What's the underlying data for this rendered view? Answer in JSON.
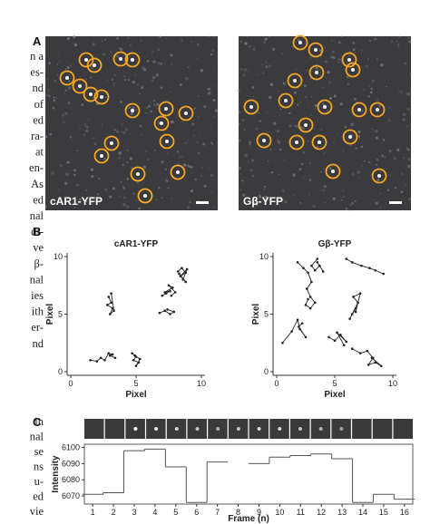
{
  "left_column": {
    "block1": [
      "n a",
      "es-",
      "nd",
      "of",
      "ed",
      "ra-",
      "at",
      "en-",
      "As",
      "ed",
      "nal",
      "di-",
      "ve",
      "β-",
      "nal",
      "ies",
      "ith",
      "er-",
      "nd"
    ],
    "block2": [
      "in",
      "nal",
      "se",
      "ns",
      "u-",
      "ed",
      "vie"
    ]
  },
  "panel_a": {
    "label": "A",
    "images": [
      {
        "caption": "cAR1-YFP"
      },
      {
        "caption": "Gβ-YFP"
      }
    ]
  },
  "panel_b": {
    "label": "B",
    "chart_data": [
      {
        "type": "line",
        "title": "cAR1-YFP",
        "xlabel": "Pixel",
        "ylabel": "Pixel",
        "xlim": [
          0,
          10
        ],
        "ylim": [
          0,
          10
        ],
        "xticks": [
          0,
          5,
          10
        ],
        "yticks": [
          0,
          5,
          10
        ],
        "color": "#222",
        "series": [
          {
            "x": [
              1.5,
              2.0,
              2.3,
              2.6,
              2.9,
              3.2,
              3.0,
              3.4
            ],
            "y": [
              1.0,
              0.9,
              1.2,
              1.0,
              1.6,
              1.5,
              1.4,
              1.2
            ]
          },
          {
            "x": [
              2.9,
              3.1,
              2.8,
              3.2,
              3.0,
              3.3,
              3.1
            ],
            "y": [
              6.5,
              6.0,
              5.8,
              5.5,
              5.0,
              5.3,
              6.8
            ]
          },
          {
            "x": [
              4.7,
              5.0,
              4.8,
              5.2,
              5.0,
              5.3,
              4.9
            ],
            "y": [
              1.6,
              1.3,
              1.0,
              0.8,
              0.5,
              1.1,
              1.4
            ]
          },
          {
            "x": [
              7.0,
              7.3,
              7.6,
              7.2,
              7.8,
              7.5,
              8.0,
              7.7
            ],
            "y": [
              6.6,
              6.8,
              7.0,
              6.9,
              7.3,
              7.5,
              6.9,
              6.6
            ]
          },
          {
            "x": [
              6.8,
              7.2,
              7.6,
              7.9,
              7.4
            ],
            "y": [
              5.1,
              5.3,
              5.0,
              5.2,
              5.4
            ]
          },
          {
            "x": [
              8.2,
              8.5,
              8.8,
              8.4,
              8.9,
              8.6,
              8.3,
              8.8
            ],
            "y": [
              8.7,
              9.0,
              8.6,
              8.3,
              8.9,
              8.0,
              8.5,
              7.8
            ]
          }
        ]
      },
      {
        "type": "line",
        "title": "Gβ-YFP",
        "xlabel": "Pixel",
        "ylabel": "Pixel",
        "xlim": [
          0,
          10
        ],
        "ylim": [
          0,
          10
        ],
        "xticks": [
          0,
          5,
          10
        ],
        "yticks": [
          0,
          5,
          10
        ],
        "color": "#222",
        "series": [
          {
            "x": [
              0.5,
              1.3,
              1.8,
              2.0,
              2.5,
              1.9,
              2.2
            ],
            "y": [
              2.5,
              3.5,
              4.5,
              3.7,
              3.0,
              3.9,
              4.2
            ]
          },
          {
            "x": [
              1.8,
              2.3,
              2.7,
              3.0,
              2.6,
              2.9,
              3.3,
              2.9,
              2.5,
              2.7
            ],
            "y": [
              9.5,
              9.0,
              8.6,
              7.8,
              7.2,
              6.5,
              6.0,
              5.5,
              5.8,
              6.3
            ]
          },
          {
            "x": [
              3.5,
              3.0,
              3.3,
              3.7,
              4.0,
              3.5
            ],
            "y": [
              9.8,
              9.2,
              8.8,
              9.2,
              8.7,
              9.5
            ]
          },
          {
            "x": [
              4.5,
              5.0,
              5.5,
              6.0,
              5.2,
              5.8
            ],
            "y": [
              3.0,
              2.7,
              3.2,
              2.6,
              3.4,
              2.3
            ]
          },
          {
            "x": [
              6.0,
              6.5,
              7.3,
              8.0,
              8.5,
              9.2
            ],
            "y": [
              9.8,
              9.5,
              9.2,
              9.0,
              8.8,
              8.5
            ]
          },
          {
            "x": [
              6.5,
              6.8,
              6.3,
              7.0,
              6.6,
              7.2,
              6.8
            ],
            "y": [
              5.0,
              5.5,
              4.6,
              6.0,
              6.5,
              6.8,
              5.2
            ]
          },
          {
            "x": [
              6.5,
              7.2,
              7.8,
              8.3,
              7.9,
              8.5,
              9.0,
              8.2
            ],
            "y": [
              2.0,
              1.6,
              1.8,
              1.2,
              0.6,
              0.8,
              0.5,
              1.2
            ]
          }
        ]
      }
    ]
  },
  "panel_c": {
    "label": "C",
    "chart_data": {
      "type": "step",
      "xlabel": "Frame (n)",
      "ylabel": "Intensity",
      "color": "#555",
      "x": [
        1,
        2,
        3,
        4,
        5,
        6,
        7,
        8,
        9,
        10,
        11,
        12,
        13,
        14,
        15,
        16
      ],
      "values": [
        6071,
        6072,
        6098,
        6099,
        6088,
        6066,
        6091,
        null,
        6090,
        6094,
        6095,
        6096,
        6093,
        6066,
        6071,
        6068
      ],
      "xlim": [
        0.6,
        16.4
      ],
      "xticks": [
        1,
        2,
        3,
        4,
        5,
        6,
        7,
        8,
        9,
        10,
        11,
        12,
        13,
        14,
        15,
        16
      ],
      "ylim": [
        6065,
        6102
      ],
      "yticks": [
        6070,
        6080,
        6090,
        6100
      ]
    }
  }
}
